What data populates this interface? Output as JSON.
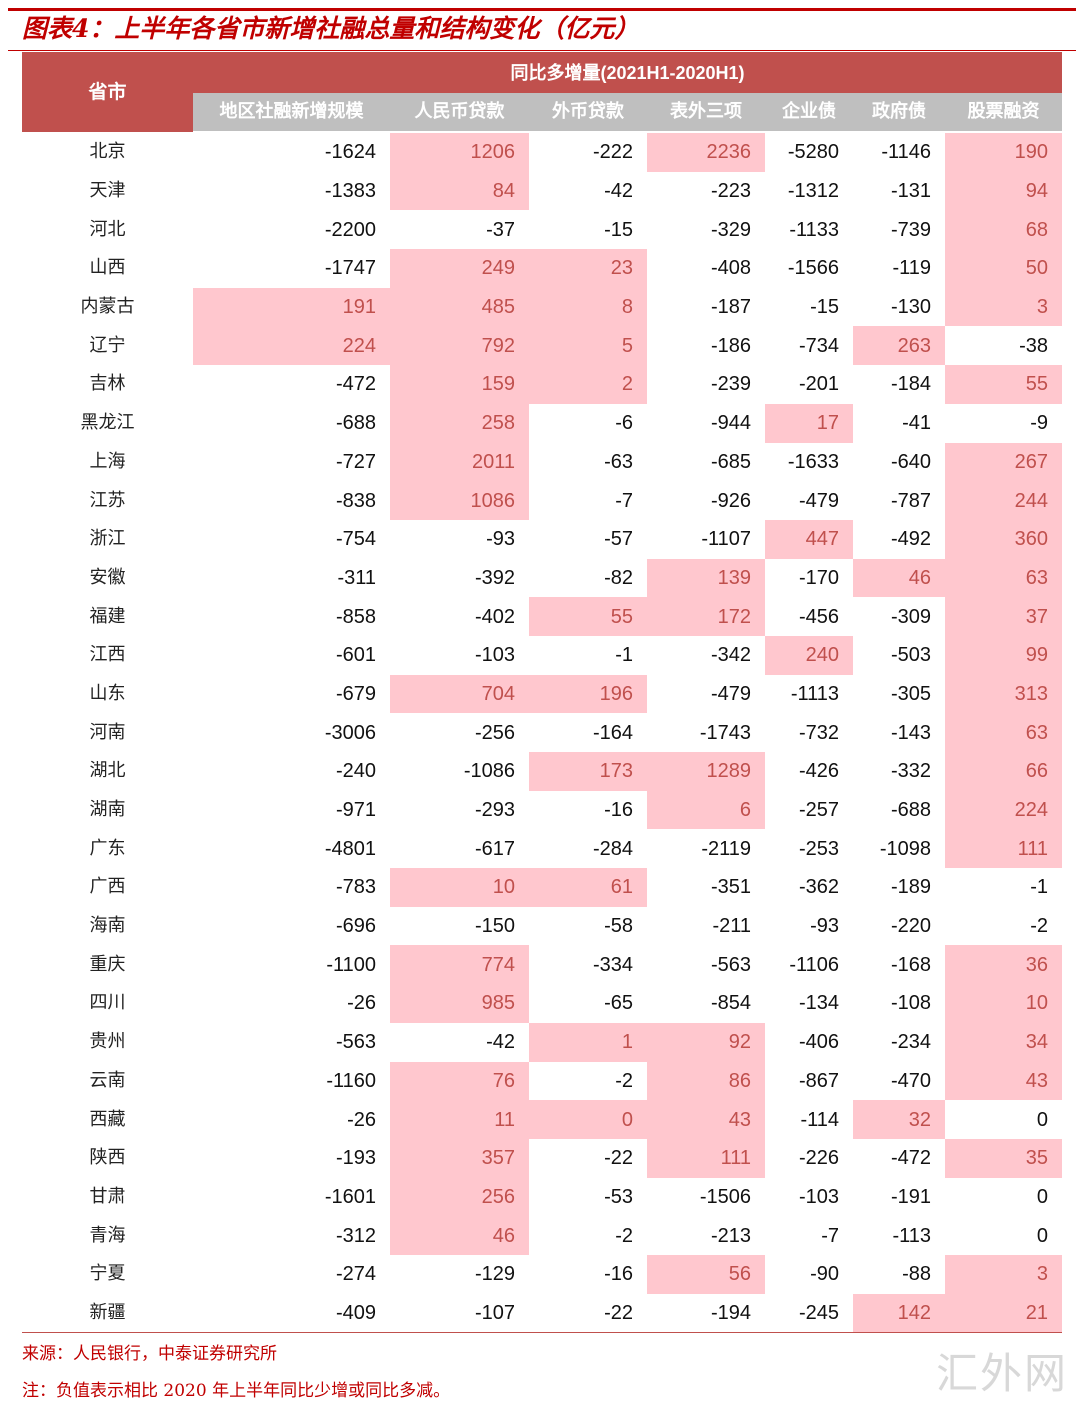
{
  "title": "图表4：上半年各省市新增社融总量和结构变化（亿元）",
  "header": {
    "province": "省市",
    "group": "同比多增量(2021H1-2020H1)",
    "columns": [
      "地区社融新增规模",
      "人民币贷款",
      "外币贷款",
      "表外三项",
      "企业债",
      "政府债",
      "股票融资"
    ]
  },
  "colors": {
    "title": "#c00000",
    "header": "#c0504d",
    "subheader": "#bfbfbf",
    "highlight": "#ffc7ce"
  },
  "rows": [
    {
      "province": "北京",
      "values": [
        -1624,
        1206,
        -222,
        2236,
        -5280,
        -1146,
        190
      ],
      "highlight": [
        1,
        3,
        6
      ]
    },
    {
      "province": "天津",
      "values": [
        -1383,
        84,
        -42,
        -223,
        -1312,
        -131,
        94
      ],
      "highlight": [
        1,
        6
      ]
    },
    {
      "province": "河北",
      "values": [
        -2200,
        -37,
        -15,
        -329,
        -1133,
        -739,
        68
      ],
      "highlight": [
        6
      ]
    },
    {
      "province": "山西",
      "values": [
        -1747,
        249,
        23,
        -408,
        -1566,
        -119,
        50
      ],
      "highlight": [
        1,
        2,
        6
      ]
    },
    {
      "province": "内蒙古",
      "values": [
        191,
        485,
        8,
        -187,
        -15,
        -130,
        3
      ],
      "highlight": [
        0,
        1,
        2,
        6
      ]
    },
    {
      "province": "辽宁",
      "values": [
        224,
        792,
        5,
        -186,
        -734,
        263,
        -38
      ],
      "highlight": [
        0,
        1,
        2,
        5
      ]
    },
    {
      "province": "吉林",
      "values": [
        -472,
        159,
        2,
        -239,
        -201,
        -184,
        55
      ],
      "highlight": [
        1,
        2,
        6
      ]
    },
    {
      "province": "黑龙江",
      "values": [
        -688,
        258,
        -6,
        -944,
        17,
        -41,
        -9
      ],
      "highlight": [
        1,
        4
      ]
    },
    {
      "province": "上海",
      "values": [
        -727,
        2011,
        -63,
        -685,
        -1633,
        -640,
        267
      ],
      "highlight": [
        1,
        6
      ]
    },
    {
      "province": "江苏",
      "values": [
        -838,
        1086,
        -7,
        -926,
        -479,
        -787,
        244
      ],
      "highlight": [
        1,
        6
      ]
    },
    {
      "province": "浙江",
      "values": [
        -754,
        -93,
        -57,
        -1107,
        447,
        -492,
        360
      ],
      "highlight": [
        4,
        6
      ]
    },
    {
      "province": "安徽",
      "values": [
        -311,
        -392,
        -82,
        139,
        -170,
        46,
        63
      ],
      "highlight": [
        3,
        5,
        6
      ]
    },
    {
      "province": "福建",
      "values": [
        -858,
        -402,
        55,
        172,
        -456,
        -309,
        37
      ],
      "highlight": [
        2,
        3,
        6
      ]
    },
    {
      "province": "江西",
      "values": [
        -601,
        -103,
        -1,
        -342,
        240,
        -503,
        99
      ],
      "highlight": [
        4,
        6
      ]
    },
    {
      "province": "山东",
      "values": [
        -679,
        704,
        196,
        -479,
        -1113,
        -305,
        313
      ],
      "highlight": [
        1,
        2,
        6
      ]
    },
    {
      "province": "河南",
      "values": [
        -3006,
        -256,
        -164,
        -1743,
        -732,
        -143,
        63
      ],
      "highlight": [
        6
      ]
    },
    {
      "province": "湖北",
      "values": [
        -240,
        -1086,
        173,
        1289,
        -426,
        -332,
        66
      ],
      "highlight": [
        2,
        3,
        6
      ]
    },
    {
      "province": "湖南",
      "values": [
        -971,
        -293,
        -16,
        6,
        -257,
        -688,
        224
      ],
      "highlight": [
        3,
        6
      ]
    },
    {
      "province": "广东",
      "values": [
        -4801,
        -617,
        -284,
        -2119,
        -253,
        -1098,
        111
      ],
      "highlight": [
        6
      ]
    },
    {
      "province": "广西",
      "values": [
        -783,
        10,
        61,
        -351,
        -362,
        -189,
        -1
      ],
      "highlight": [
        1,
        2
      ]
    },
    {
      "province": "海南",
      "values": [
        -696,
        -150,
        -58,
        -211,
        -93,
        -220,
        -2
      ],
      "highlight": []
    },
    {
      "province": "重庆",
      "values": [
        -1100,
        774,
        -334,
        -563,
        -1106,
        -168,
        36
      ],
      "highlight": [
        1,
        6
      ]
    },
    {
      "province": "四川",
      "values": [
        -26,
        985,
        -65,
        -854,
        -134,
        -108,
        10
      ],
      "highlight": [
        1,
        6
      ]
    },
    {
      "province": "贵州",
      "values": [
        -563,
        -42,
        1,
        92,
        -406,
        -234,
        34
      ],
      "highlight": [
        2,
        3,
        6
      ]
    },
    {
      "province": "云南",
      "values": [
        -1160,
        76,
        -2,
        86,
        -867,
        -470,
        43
      ],
      "highlight": [
        1,
        3,
        6
      ]
    },
    {
      "province": "西藏",
      "values": [
        -26,
        11,
        0,
        43,
        -114,
        32,
        0
      ],
      "highlight": [
        1,
        2,
        3,
        5
      ]
    },
    {
      "province": "陕西",
      "values": [
        -193,
        357,
        -22,
        111,
        -226,
        -472,
        35
      ],
      "highlight": [
        1,
        3,
        6
      ]
    },
    {
      "province": "甘肃",
      "values": [
        -1601,
        256,
        -53,
        -1506,
        -103,
        -191,
        0
      ],
      "highlight": [
        1
      ]
    },
    {
      "province": "青海",
      "values": [
        -312,
        46,
        -2,
        -213,
        -7,
        -113,
        0
      ],
      "highlight": [
        1
      ]
    },
    {
      "province": "宁夏",
      "values": [
        -274,
        -129,
        -16,
        56,
        -90,
        -88,
        3
      ],
      "highlight": [
        3,
        6
      ]
    },
    {
      "province": "新疆",
      "values": [
        -409,
        -107,
        -22,
        -194,
        -245,
        142,
        21
      ],
      "highlight": [
        5,
        6
      ]
    }
  ],
  "footer": {
    "source": "来源：人民银行，中泰证券研究所",
    "note": "注：负值表示相比 2020 年上半年同比少增或同比多减。"
  },
  "watermark": "汇外网"
}
